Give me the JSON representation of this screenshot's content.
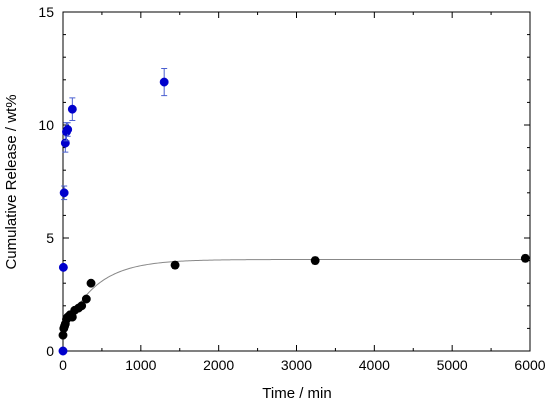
{
  "chart_data": {
    "type": "scatter",
    "title": "",
    "xlabel": "Time / min",
    "ylabel": "Cumulative Release / wt%",
    "xlim": [
      0,
      6000
    ],
    "ylim": [
      0,
      15
    ],
    "x_ticks": [
      "0",
      "1000",
      "2000",
      "3000",
      "4000",
      "5000",
      "6000"
    ],
    "y_ticks": [
      "0",
      "5",
      "10",
      "15"
    ],
    "grid": false,
    "legend": "none",
    "series": [
      {
        "color": "#0000cc",
        "points": [
          {
            "x": 0,
            "y": 0,
            "err": 0
          },
          {
            "x": 5,
            "y": 3.7,
            "err": 0
          },
          {
            "x": 15,
            "y": 7.0,
            "err": 0.3
          },
          {
            "x": 30,
            "y": 9.2,
            "err": 0.4
          },
          {
            "x": 45,
            "y": 9.7,
            "err": 0.4
          },
          {
            "x": 60,
            "y": 9.8,
            "err": 0.3
          },
          {
            "x": 120,
            "y": 10.7,
            "err": 0.5
          },
          {
            "x": 1300,
            "y": 11.9,
            "err": 0.6
          }
        ]
      },
      {
        "color": "#000000",
        "points": [
          {
            "x": 0,
            "y": 0.7,
            "err": 0
          },
          {
            "x": 10,
            "y": 1.0,
            "err": 0
          },
          {
            "x": 20,
            "y": 1.1,
            "err": 0
          },
          {
            "x": 30,
            "y": 1.2,
            "err": 0
          },
          {
            "x": 45,
            "y": 1.4,
            "err": 0
          },
          {
            "x": 60,
            "y": 1.5,
            "err": 0
          },
          {
            "x": 90,
            "y": 1.6,
            "err": 0
          },
          {
            "x": 120,
            "y": 1.5,
            "err": 0
          },
          {
            "x": 150,
            "y": 1.8,
            "err": 0
          },
          {
            "x": 200,
            "y": 1.9,
            "err": 0
          },
          {
            "x": 240,
            "y": 2.0,
            "err": 0
          },
          {
            "x": 300,
            "y": 2.3,
            "err": 0
          },
          {
            "x": 360,
            "y": 3.0,
            "err": 0
          },
          {
            "x": 1440,
            "y": 3.8,
            "err": 0.15
          },
          {
            "x": 3240,
            "y": 4.0,
            "err": 0.15
          },
          {
            "x": 5940,
            "y": 4.1,
            "err": 0.15
          }
        ]
      }
    ],
    "fit_curve": {
      "type": "line",
      "color": "#888888",
      "model": "exponential",
      "plateau": 4.05,
      "start": 0.7,
      "rate": 0.0025
    }
  }
}
